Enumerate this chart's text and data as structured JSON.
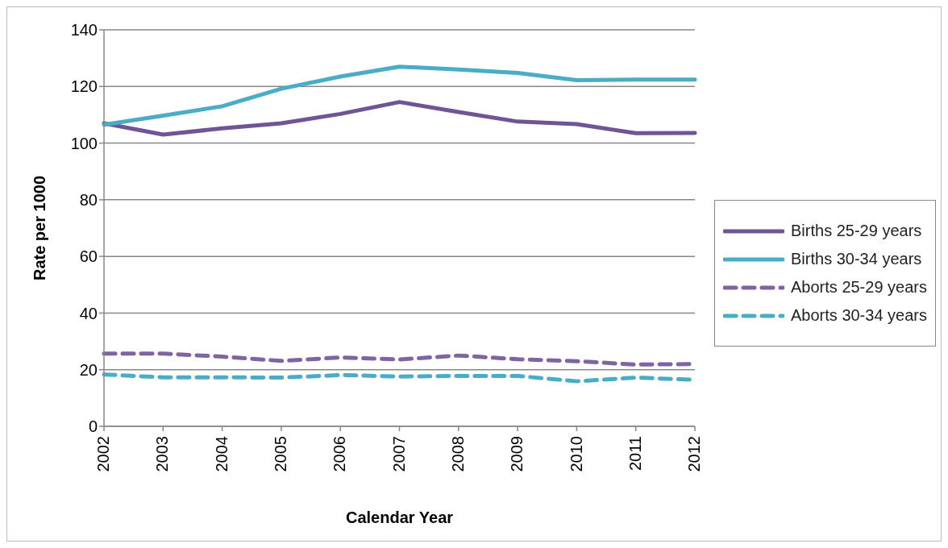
{
  "chart_data": {
    "type": "line",
    "xlabel": "Calendar Year",
    "ylabel": "Rate per 1000",
    "categories": [
      "2002",
      "2003",
      "2004",
      "2005",
      "2006",
      "2007",
      "2008",
      "2009",
      "2010",
      "2011",
      "2012"
    ],
    "series": [
      {
        "name": "Births 25-29 years",
        "color": "#6f5596",
        "line_style": "solid",
        "values": [
          107,
          103,
          105.2,
          107,
          110.3,
          114.5,
          111,
          107.6,
          106.7,
          103.5,
          103.6
        ]
      },
      {
        "name": "Births 30-34 years",
        "color": "#4bacc6",
        "line_style": "solid",
        "values": [
          106.5,
          109.7,
          113,
          119.2,
          123.5,
          127,
          126,
          124.8,
          122.2,
          122.4,
          122.4
        ]
      },
      {
        "name": "Aborts 25-29 years",
        "color": "#8064a2",
        "line_style": "dashed",
        "values": [
          25.7,
          25.7,
          24.6,
          23.1,
          24.3,
          23.6,
          25,
          23.7,
          23,
          21.8,
          22
        ]
      },
      {
        "name": "Aborts 30-34 years",
        "color": "#4bacc6",
        "line_style": "dashed",
        "values": [
          18.3,
          17.3,
          17.3,
          17.2,
          18.1,
          17.6,
          17.8,
          17.8,
          15.9,
          17.2,
          16.4
        ]
      }
    ],
    "ylim": [
      0,
      140
    ],
    "yticks": [
      0,
      20,
      40,
      60,
      80,
      100,
      120,
      140
    ],
    "grid": "y",
    "legend": "right",
    "marker": "none"
  }
}
